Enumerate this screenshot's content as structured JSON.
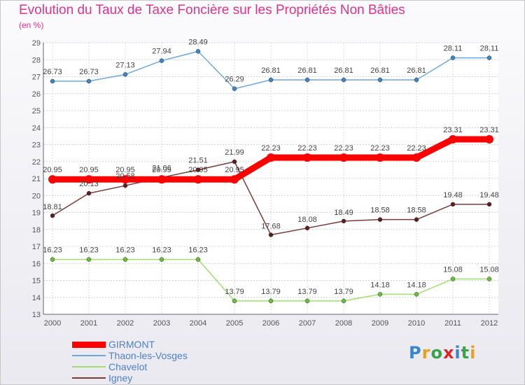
{
  "title": "Evolution du Taux de Taxe Foncière sur les Propriétés Non Bâties",
  "subtitle": "(en %)",
  "logo": {
    "letters": [
      "P",
      "r",
      "o",
      "x",
      "i",
      "t",
      "i"
    ],
    "colors": [
      "#3a86c8",
      "#e8a020",
      "#3aa34a",
      "#d62a2a",
      "#3a86c8",
      "#3aa34a",
      "#e8a020"
    ]
  },
  "chart_data": {
    "type": "line",
    "title": "Evolution du Taux de Taxe Foncière sur les Propriétés Non Bâties",
    "ylabel": "(en %)",
    "x": [
      "2000",
      "2001",
      "2002",
      "2003",
      "2004",
      "2005",
      "2006",
      "2007",
      "2008",
      "2009",
      "2010",
      "2011",
      "2012"
    ],
    "ylim": [
      13,
      29
    ],
    "yticks": [
      13,
      14,
      15,
      16,
      17,
      18,
      19,
      20,
      21,
      22,
      23,
      24,
      25,
      26,
      27,
      28,
      29
    ],
    "grid": true,
    "legend_position": "bottom-left",
    "series": [
      {
        "name": "GIRMONT",
        "color": "#ff0000",
        "marker_color": "#ff0000",
        "width": "thick",
        "values": [
          20.95,
          20.95,
          20.95,
          20.95,
          20.95,
          20.95,
          22.23,
          22.23,
          22.23,
          22.23,
          22.23,
          23.31,
          23.31
        ],
        "labels": [
          "20.95",
          "20.95",
          "20.95",
          "20.95",
          "20.95",
          "20.95",
          "22.23",
          "22.23",
          "22.23",
          "22.23",
          "22.23",
          "23.31",
          "23.31"
        ]
      },
      {
        "name": "Thaon-les-Vosges",
        "color": "#6fa8dc",
        "marker_color": "#3d85c6",
        "width": "thin",
        "values": [
          26.73,
          26.73,
          27.13,
          27.94,
          28.49,
          26.29,
          26.81,
          26.81,
          26.81,
          26.81,
          26.81,
          28.11,
          28.11
        ],
        "labels": [
          "26.73",
          "26.73",
          "27.13",
          "27.94",
          "28.49",
          "26.29",
          "26.81",
          "26.81",
          "26.81",
          "26.81",
          "26.81",
          "28.11",
          "28.11"
        ]
      },
      {
        "name": "Chavelot",
        "color": "#9fe070",
        "marker_color": "#6abf3a",
        "width": "thin",
        "values": [
          16.23,
          16.23,
          16.23,
          16.23,
          16.23,
          13.79,
          13.79,
          13.79,
          13.79,
          14.18,
          14.18,
          15.08,
          15.08
        ],
        "labels": [
          "16.23",
          "16.23",
          "16.23",
          "16.23",
          "16.23",
          "13.79",
          "13.79",
          "13.79",
          "13.79",
          "14.18",
          "14.18",
          "15.08",
          "15.08"
        ]
      },
      {
        "name": "Igney",
        "color": "#7a3a3a",
        "marker_color": "#5c1f1f",
        "width": "thin",
        "values": [
          18.81,
          20.13,
          20.58,
          21.06,
          21.51,
          21.99,
          17.68,
          18.08,
          18.49,
          18.58,
          18.58,
          19.48,
          19.48
        ],
        "labels": [
          "18.81",
          "20.13",
          "20.58",
          "21.06",
          "21.51",
          "21.99",
          "17.68",
          "18.08",
          "18.49",
          "18.58",
          "18.58",
          "19.48",
          "19.48"
        ]
      }
    ]
  }
}
